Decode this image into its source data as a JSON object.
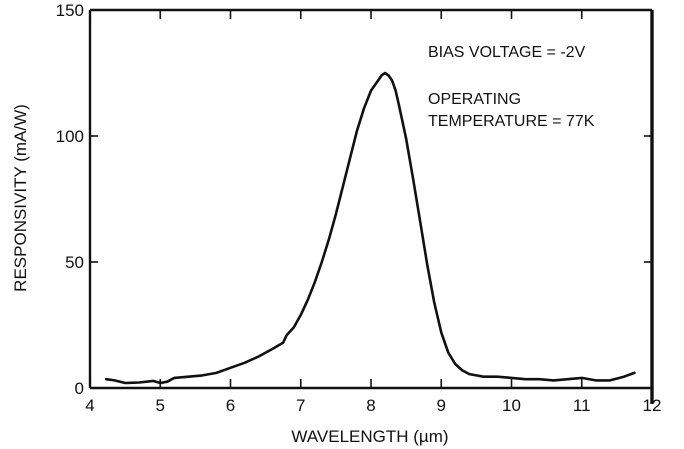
{
  "chart_data": {
    "type": "line",
    "xlabel": "WAVELENGTH (µm)",
    "ylabel": "RESPONSIVITY (mA/W)",
    "xlim": [
      4,
      12
    ],
    "ylim": [
      0,
      150
    ],
    "x_ticks": [
      4,
      5,
      6,
      7,
      8,
      9,
      10,
      11,
      12
    ],
    "y_ticks": [
      0,
      50,
      100,
      150
    ],
    "grid": false,
    "annotations": [
      "BIAS VOLTAGE = -2V",
      "OPERATING",
      "TEMPERATURE = 77K"
    ],
    "series": [
      {
        "x": [
          4.23,
          4.35,
          4.5,
          4.7,
          4.9,
          5.0,
          5.1,
          5.2,
          5.4,
          5.6,
          5.8,
          6.0,
          6.2,
          6.4,
          6.6,
          6.75,
          6.8,
          6.9,
          7.0,
          7.1,
          7.2,
          7.3,
          7.4,
          7.5,
          7.6,
          7.7,
          7.8,
          7.9,
          8.0,
          8.1,
          8.15,
          8.2,
          8.25,
          8.3,
          8.35,
          8.4,
          8.5,
          8.6,
          8.7,
          8.8,
          8.9,
          9.0,
          9.1,
          9.2,
          9.3,
          9.4,
          9.5,
          9.6,
          9.8,
          10.0,
          10.2,
          10.4,
          10.6,
          10.8,
          11.0,
          11.2,
          11.4,
          11.6,
          11.75
        ],
        "y": [
          3.5,
          3.0,
          2.0,
          2.2,
          2.8,
          2.0,
          2.5,
          4.0,
          4.5,
          5.0,
          6.0,
          8.0,
          10.0,
          12.5,
          15.5,
          18.0,
          21.0,
          24.0,
          29.0,
          35.0,
          42.0,
          50.0,
          59.0,
          69.0,
          80.0,
          91.0,
          102.0,
          111.0,
          118.0,
          122.0,
          124.0,
          125.0,
          124.0,
          122.0,
          118.0,
          112.0,
          99.0,
          83.0,
          66.0,
          49.0,
          34.0,
          22.0,
          14.0,
          9.5,
          7.0,
          5.5,
          5.0,
          4.5,
          4.5,
          4.0,
          3.5,
          3.5,
          3.0,
          3.5,
          4.0,
          3.0,
          3.0,
          4.5,
          6.0
        ]
      }
    ]
  }
}
